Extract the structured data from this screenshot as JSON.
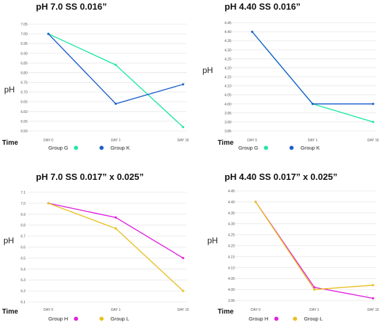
{
  "chart_data": [
    {
      "type": "line",
      "title": "pH 7.0 SS 0.016”",
      "xlabel": "Time",
      "ylabel": "pH",
      "categories": [
        "DAY 0",
        "DAY 1",
        "DAY 15"
      ],
      "ylim": [
        6.5,
        7.05
      ],
      "yticks": [
        "7.05",
        "7.00",
        "6.95",
        "6.90",
        "6.85",
        "6.80",
        "6.75",
        "6.70",
        "6.65",
        "6.60",
        "6.55",
        "6.50"
      ],
      "grid": true,
      "legend_position": "bottom",
      "series": [
        {
          "name": "Group G",
          "color": "#1de9a0",
          "values": [
            7.0,
            6.84,
            6.52
          ]
        },
        {
          "name": "Group K",
          "color": "#1f5fcc",
          "values": [
            7.0,
            6.64,
            6.74
          ]
        }
      ]
    },
    {
      "type": "line",
      "title": "pH 4.40 SS 0.016”",
      "xlabel": "Time",
      "ylabel": "pH",
      "categories": [
        "DAY 0",
        "DAY 1",
        "DAY 15"
      ],
      "ylim": [
        3.85,
        4.45
      ],
      "yticks": [
        "4.45",
        "4.40",
        "4.35",
        "4.30",
        "4.25",
        "4.20",
        "4.15",
        "4.10",
        "4.05",
        "4.00",
        "3.95",
        "3.90",
        "3.85"
      ],
      "grid": true,
      "legend_position": "bottom",
      "series": [
        {
          "name": "Group G",
          "color": "#1de9a0",
          "values": [
            4.4,
            4.0,
            3.9
          ]
        },
        {
          "name": "Group K",
          "color": "#1f5fcc",
          "values": [
            4.4,
            4.0,
            4.0
          ]
        }
      ]
    },
    {
      "type": "line",
      "title": "pH 7.0 SS 0.017” x 0.025”",
      "xlabel": "Time",
      "ylabel": "pH",
      "categories": [
        "DAY 0",
        "DAY 1",
        "DAY 15"
      ],
      "ylim": [
        6.1,
        7.1
      ],
      "yticks": [
        "7.1",
        "7.0",
        "6.9",
        "6.8",
        "6.7",
        "6.6",
        "6.5",
        "6.4",
        "6.3",
        "6.2",
        "6.1"
      ],
      "grid": true,
      "legend_position": "bottom",
      "series": [
        {
          "name": "Group H",
          "color": "#e020e0",
          "values": [
            7.0,
            6.87,
            6.5
          ]
        },
        {
          "name": "Group L",
          "color": "#e8c020",
          "values": [
            7.0,
            6.77,
            6.2
          ]
        }
      ]
    },
    {
      "type": "line",
      "title": "pH 4.40 SS 0.017” x 0.025”",
      "xlabel": "Time",
      "ylabel": "pH",
      "categories": [
        "DAY 0",
        "DAY 1",
        "DAY 15"
      ],
      "ylim": [
        3.95,
        4.45
      ],
      "yticks": [
        "4.45",
        "4.40",
        "4.35",
        "4.30",
        "4.25",
        "4.20",
        "4.15",
        "4.10",
        "4.05",
        "4.00",
        "3.95"
      ],
      "grid": true,
      "legend_position": "bottom",
      "series": [
        {
          "name": "Group H",
          "color": "#e020e0",
          "values": [
            4.4,
            4.01,
            3.96
          ]
        },
        {
          "name": "Group L",
          "color": "#e8c020",
          "values": [
            4.4,
            4.0,
            4.02
          ]
        }
      ]
    }
  ]
}
